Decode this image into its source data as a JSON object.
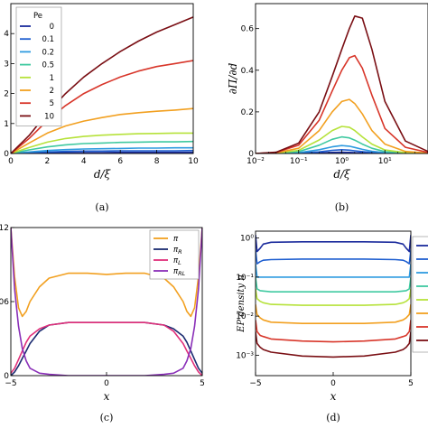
{
  "chart_data": [
    {
      "type": "line",
      "caption": "(a)",
      "xlabel": "d/ξ",
      "ylabel": "",
      "xlim": [
        0,
        10
      ],
      "ylim": [
        0,
        5
      ],
      "xticks": [
        "0",
        "2",
        "4",
        "6",
        "8",
        "10"
      ],
      "yticks": [
        "0",
        "1",
        "2",
        "3",
        "4"
      ],
      "legend_title": "Pe",
      "legend_position": "top-left",
      "x": [
        0,
        1,
        2,
        3,
        4,
        5,
        6,
        7,
        8,
        9,
        10
      ],
      "series": [
        {
          "name": "0",
          "color": "#1a2a9c",
          "values": [
            0,
            0.01,
            0.02,
            0.03,
            0.03,
            0.03,
            0.04,
            0.04,
            0.04,
            0.04,
            0.04
          ]
        },
        {
          "name": "0.1",
          "color": "#1f5fd0",
          "values": [
            0,
            0.03,
            0.05,
            0.07,
            0.08,
            0.08,
            0.09,
            0.09,
            0.09,
            0.09,
            0.1
          ]
        },
        {
          "name": "0.2",
          "color": "#2f9be0",
          "values": [
            0,
            0.05,
            0.1,
            0.13,
            0.15,
            0.16,
            0.17,
            0.18,
            0.18,
            0.19,
            0.19
          ]
        },
        {
          "name": "0.5",
          "color": "#3fc9a0",
          "values": [
            0,
            0.12,
            0.22,
            0.29,
            0.33,
            0.35,
            0.37,
            0.38,
            0.39,
            0.39,
            0.4
          ]
        },
        {
          "name": "1",
          "color": "#b6e23a",
          "values": [
            0,
            0.2,
            0.38,
            0.5,
            0.57,
            0.61,
            0.64,
            0.66,
            0.67,
            0.68,
            0.68
          ]
        },
        {
          "name": "2",
          "color": "#f2a020",
          "values": [
            0,
            0.35,
            0.68,
            0.92,
            1.08,
            1.2,
            1.3,
            1.36,
            1.41,
            1.45,
            1.5
          ]
        },
        {
          "name": "5",
          "color": "#d8362a",
          "values": [
            0,
            0.5,
            1.1,
            1.6,
            2.0,
            2.3,
            2.55,
            2.75,
            2.9,
            3.0,
            3.1
          ]
        },
        {
          "name": "10",
          "color": "#7a0f14",
          "values": [
            0,
            0.6,
            1.35,
            2.0,
            2.55,
            3.0,
            3.4,
            3.75,
            4.05,
            4.3,
            4.55
          ]
        }
      ]
    },
    {
      "type": "line",
      "caption": "(b)",
      "xlabel": "d/ξ",
      "ylabel": "∂Π/∂d",
      "xscale": "log",
      "xlim": [
        0.01,
        100
      ],
      "ylim": [
        0,
        0.72
      ],
      "xticks": [
        "10⁻²",
        "10⁻¹",
        "10⁰",
        "10¹"
      ],
      "yticks": [
        "0",
        "0.2",
        "0.4",
        "0.6"
      ],
      "x": [
        0.01,
        0.03,
        0.1,
        0.3,
        0.6,
        1,
        1.5,
        2,
        3,
        5,
        10,
        30,
        100
      ],
      "series": [
        {
          "color": "#1a2a9c",
          "values": [
            0,
            0,
            0.001,
            0.003,
            0.005,
            0.006,
            0.005,
            0.004,
            0.003,
            0.002,
            0.001,
            0,
            0
          ]
        },
        {
          "color": "#1f5fd0",
          "values": [
            0,
            0,
            0.002,
            0.008,
            0.015,
            0.018,
            0.016,
            0.013,
            0.009,
            0.005,
            0.002,
            0,
            0
          ]
        },
        {
          "color": "#2f9be0",
          "values": [
            0,
            0.001,
            0.004,
            0.018,
            0.032,
            0.038,
            0.035,
            0.029,
            0.02,
            0.011,
            0.004,
            0.001,
            0
          ]
        },
        {
          "color": "#3fc9a0",
          "values": [
            0,
            0.001,
            0.009,
            0.04,
            0.068,
            0.08,
            0.075,
            0.064,
            0.045,
            0.025,
            0.009,
            0.002,
            0
          ]
        },
        {
          "color": "#b6e23a",
          "values": [
            0,
            0.002,
            0.015,
            0.065,
            0.11,
            0.13,
            0.126,
            0.11,
            0.08,
            0.045,
            0.017,
            0.004,
            0.001
          ]
        },
        {
          "color": "#f2a020",
          "values": [
            0,
            0.003,
            0.025,
            0.11,
            0.2,
            0.25,
            0.26,
            0.24,
            0.19,
            0.11,
            0.045,
            0.01,
            0.002
          ]
        },
        {
          "color": "#d8362a",
          "values": [
            0,
            0.005,
            0.04,
            0.16,
            0.3,
            0.4,
            0.46,
            0.47,
            0.41,
            0.28,
            0.12,
            0.03,
            0.005
          ]
        },
        {
          "color": "#7a0f14",
          "values": [
            0,
            0.006,
            0.05,
            0.2,
            0.37,
            0.5,
            0.6,
            0.66,
            0.65,
            0.5,
            0.25,
            0.06,
            0.01
          ]
        }
      ]
    },
    {
      "type": "line",
      "caption": "(c)",
      "xlabel": "x",
      "ylabel": "",
      "xlim": [
        -5,
        5
      ],
      "ylim": [
        0,
        0.12
      ],
      "xticks": [
        "−5",
        "0",
        "5"
      ],
      "yticks": [
        "0",
        "0.06",
        "0.12"
      ],
      "legend_position": "top-right",
      "x": [
        -5,
        -4.8,
        -4.6,
        -4.4,
        -4.2,
        -4,
        -3.5,
        -3,
        -2,
        -1,
        0,
        1,
        2,
        3,
        3.5,
        4,
        4.2,
        4.4,
        4.6,
        4.8,
        5
      ],
      "series": [
        {
          "name": "π",
          "color": "#f2a020",
          "values": [
            0.12,
            0.08,
            0.055,
            0.048,
            0.052,
            0.06,
            0.072,
            0.079,
            0.083,
            0.083,
            0.082,
            0.083,
            0.083,
            0.079,
            0.072,
            0.06,
            0.052,
            0.048,
            0.055,
            0.08,
            0.12
          ]
        },
        {
          "name": "π_R",
          "color": "#1a2a70",
          "values": [
            0,
            0.003,
            0.008,
            0.014,
            0.02,
            0.026,
            0.036,
            0.041,
            0.043,
            0.043,
            0.043,
            0.043,
            0.043,
            0.041,
            0.038,
            0.032,
            0.027,
            0.02,
            0.013,
            0.006,
            0.002
          ]
        },
        {
          "name": "π_L",
          "color": "#e0307a",
          "values": [
            0.002,
            0.006,
            0.013,
            0.02,
            0.027,
            0.032,
            0.038,
            0.041,
            0.043,
            0.043,
            0.043,
            0.043,
            0.043,
            0.041,
            0.036,
            0.026,
            0.02,
            0.014,
            0.008,
            0.003,
            0
          ]
        },
        {
          "name": "π_RL",
          "color": "#8a2fb8",
          "values": [
            0.12,
            0.07,
            0.04,
            0.022,
            0.012,
            0.006,
            0.002,
            0.001,
            0,
            0,
            0,
            0,
            0,
            0.001,
            0.002,
            0.006,
            0.012,
            0.022,
            0.04,
            0.07,
            0.12
          ]
        }
      ]
    },
    {
      "type": "line",
      "caption": "(d)",
      "xlabel": "x",
      "ylabel": "EP density π",
      "yscale": "log",
      "xlim": [
        -5,
        5
      ],
      "ylim": [
        0.0003,
        1.5
      ],
      "xticks": [
        "−5",
        "0",
        "5"
      ],
      "yticks": [
        "10⁰",
        "10⁻¹",
        "10⁻²",
        "10⁻³"
      ],
      "x": [
        -5,
        -4.9,
        -4.7,
        -4.5,
        -4,
        -2,
        0,
        2,
        4,
        4.5,
        4.7,
        4.9,
        5
      ],
      "series": [
        {
          "color": "#1a2a9c",
          "values": [
            1.2,
            0.45,
            0.55,
            0.7,
            0.78,
            0.8,
            0.8,
            0.8,
            0.78,
            0.7,
            0.55,
            0.45,
            1.2
          ]
        },
        {
          "color": "#1f5fd0",
          "values": [
            0.5,
            0.22,
            0.25,
            0.27,
            0.28,
            0.29,
            0.29,
            0.29,
            0.28,
            0.27,
            0.25,
            0.22,
            0.5
          ]
        },
        {
          "color": "#2f9be0",
          "values": [
            0.22,
            0.1,
            0.1,
            0.1,
            0.1,
            0.1,
            0.1,
            0.1,
            0.1,
            0.1,
            0.1,
            0.1,
            0.22
          ]
        },
        {
          "color": "#3fc9a0",
          "values": [
            0.1,
            0.05,
            0.045,
            0.044,
            0.042,
            0.042,
            0.042,
            0.042,
            0.042,
            0.044,
            0.045,
            0.05,
            0.1
          ]
        },
        {
          "color": "#b6e23a",
          "values": [
            0.05,
            0.028,
            0.024,
            0.022,
            0.02,
            0.019,
            0.019,
            0.019,
            0.02,
            0.022,
            0.024,
            0.028,
            0.05
          ]
        },
        {
          "color": "#f2a020",
          "values": [
            0.02,
            0.011,
            0.009,
            0.008,
            0.007,
            0.0065,
            0.0065,
            0.0065,
            0.007,
            0.008,
            0.009,
            0.011,
            0.02
          ]
        },
        {
          "color": "#d8362a",
          "values": [
            0.008,
            0.004,
            0.0032,
            0.003,
            0.0026,
            0.0023,
            0.0022,
            0.0023,
            0.0026,
            0.003,
            0.0032,
            0.004,
            0.008
          ]
        },
        {
          "color": "#7a0f14",
          "values": [
            0.004,
            0.002,
            0.0016,
            0.0014,
            0.0012,
            0.00095,
            0.0009,
            0.00095,
            0.0012,
            0.0014,
            0.0016,
            0.002,
            0.004
          ]
        }
      ]
    }
  ]
}
